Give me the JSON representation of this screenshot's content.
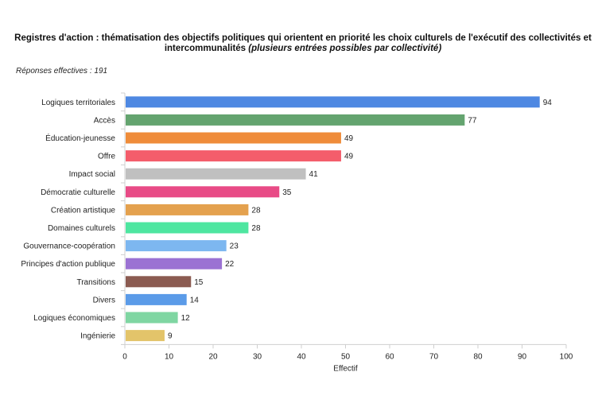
{
  "chart_data": {
    "type": "bar",
    "orientation": "horizontal",
    "title": "Registres d'action : thématisation des objectifs politiques qui orientent en priorité les choix culturels de l'exécutif des collectivités et intercommunalités",
    "title_suffix": "(plusieurs entrées possibles par collectivité)",
    "subtitle": "Réponses effectives : 191",
    "xlabel": "Effectif",
    "ylabel": "",
    "xlim": [
      0,
      100
    ],
    "xticks": [
      0,
      10,
      20,
      30,
      40,
      50,
      60,
      70,
      80,
      90,
      100
    ],
    "grid": false,
    "legend": "none",
    "categories": [
      "Logiques territoriales",
      "Accès",
      "Éducation-jeunesse",
      "Offre",
      "Impact social",
      "Démocratie culturelle",
      "Création artistique",
      "Domaines culturels",
      "Gouvernance-coopération",
      "Principes d'action publique",
      "Transitions",
      "Divers",
      "Logiques économiques",
      "Ingénierie"
    ],
    "values": [
      94,
      77,
      49,
      49,
      41,
      35,
      28,
      28,
      23,
      22,
      15,
      14,
      12,
      9
    ],
    "colors": [
      "#4e88e2",
      "#64a46f",
      "#ef8c3a",
      "#f45d6b",
      "#c0c0c0",
      "#e84b86",
      "#e4a14e",
      "#4ee6a0",
      "#7db7f0",
      "#9b72d3",
      "#8b5b51",
      "#5b9be8",
      "#7fd6a2",
      "#e3c46a"
    ]
  }
}
